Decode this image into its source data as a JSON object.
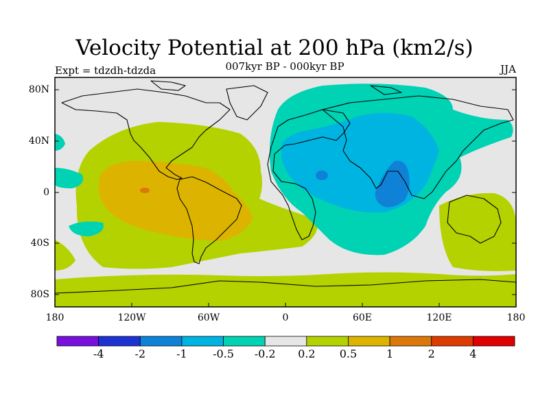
{
  "title": "Velocity Potential at 200 hPa (km2/s)",
  "subtitle": "007kyr BP - 000kyr BP",
  "left_label": "Expt = tdzdh-tdzda",
  "right_label": "JJA",
  "axes": {
    "y_ticks": [
      "80N",
      "40N",
      "0",
      "40S",
      "80S"
    ],
    "x_ticks": [
      "180",
      "120W",
      "60W",
      "0",
      "60E",
      "120E",
      "180"
    ]
  },
  "colorbar": {
    "colors": [
      "#7710dc",
      "#1e32d2",
      "#0f82d7",
      "#00b4e1",
      "#00d2b4",
      "#e6e6e6",
      "#b4d200",
      "#dcb400",
      "#dc780a",
      "#dc3c00",
      "#e10000"
    ],
    "labels": [
      "-4",
      "-2",
      "-1",
      "-0.5",
      "-0.2",
      "0.2",
      "0.5",
      "1",
      "2",
      "4"
    ]
  },
  "legend_fields": {
    "neutral": "#e6e6e6",
    "pos1": "#b4d200",
    "pos2": "#dcb400",
    "neg1": "#00d2b4",
    "neg2": "#00b4e1",
    "neg3": "#0f82d7",
    "land": "#000000"
  }
}
